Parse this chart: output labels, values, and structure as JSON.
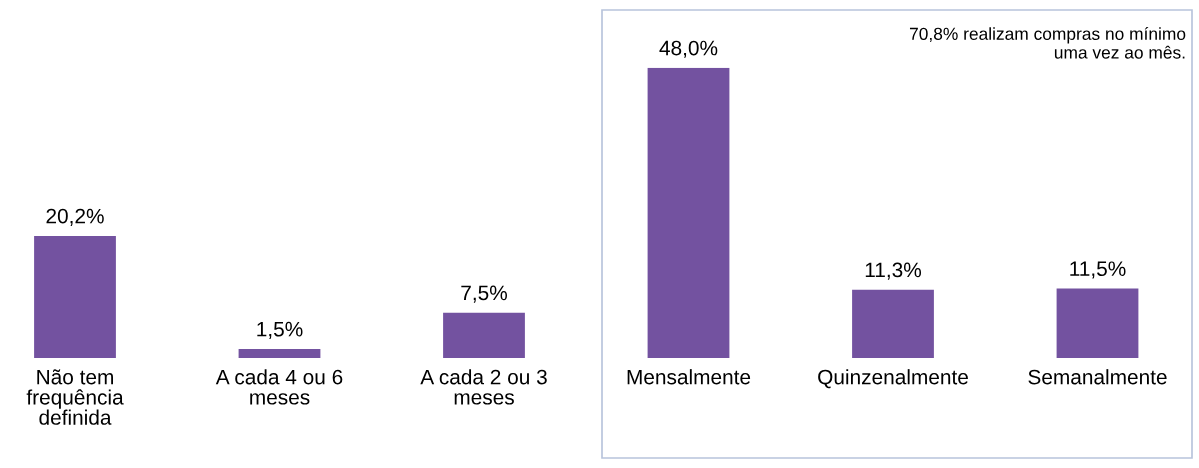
{
  "chart_data": {
    "type": "bar",
    "categories": [
      "Não tem\nfrequência\ndefinida",
      "A cada 4 ou 6\nmeses",
      "A cada 2 ou 3\nmeses",
      "Mensalmente",
      "Quinzenalmente",
      "Semanalmente"
    ],
    "values": [
      20.2,
      1.5,
      7.5,
      48.0,
      11.3,
      11.5
    ],
    "value_labels": [
      "20,2%",
      "1,5%",
      "7,5%",
      "48,0%",
      "11,3%",
      "11,5%"
    ],
    "color": "#7352a0",
    "annotations": [
      "70,8% realizam compras no mínimo\numa vez ao mês."
    ],
    "grid": false,
    "legend": false
  }
}
